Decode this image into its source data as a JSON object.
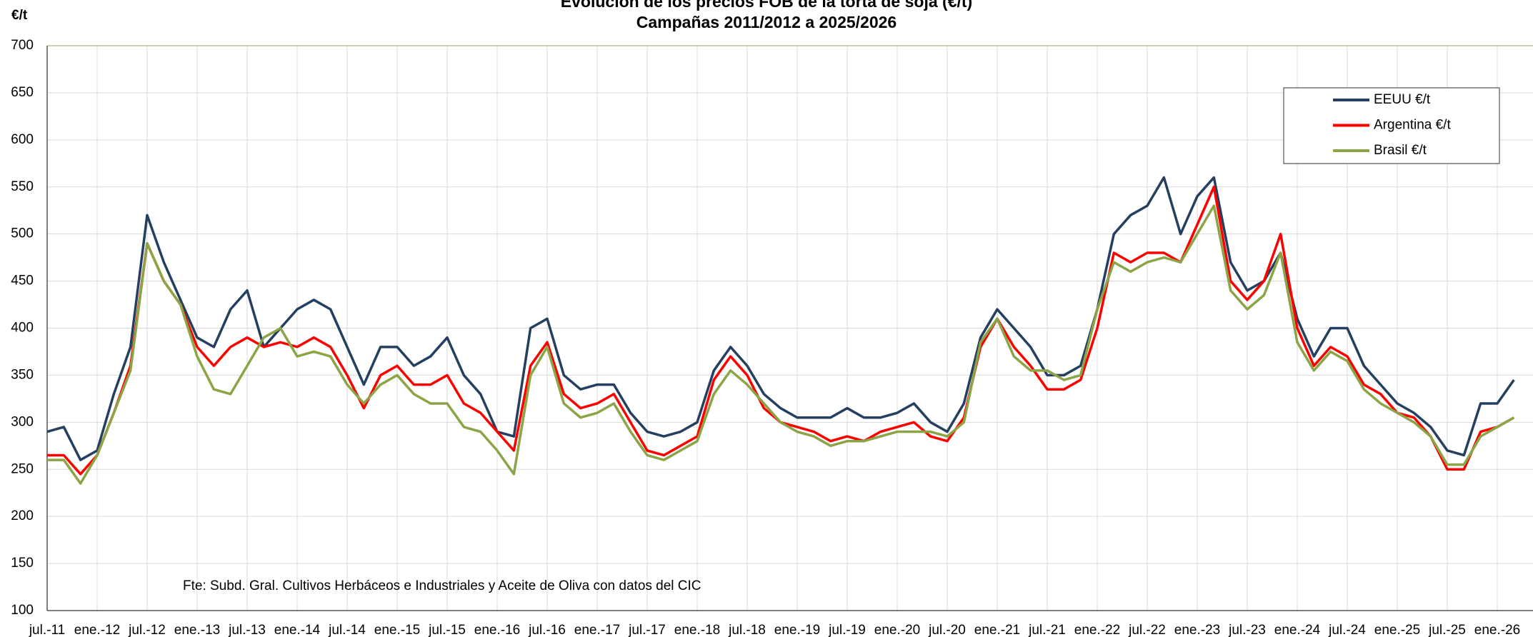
{
  "chart_data": {
    "type": "line",
    "title": "Evolución de los precios FOB de la torta de soja (€/t)",
    "subtitle": "Campañas 2011/2012 a 2025/2026",
    "y_label": "€/t",
    "annotation": "Fte: Subd. Gral. Cultivos Herbáceos e Industriales y Aceite de Oliva con datos del CIC",
    "categories": [
      "jul.-11",
      null,
      null,
      "ene.-12",
      null,
      null,
      "jul.-12",
      null,
      null,
      "ene.-13",
      null,
      null,
      "jul.-13",
      null,
      null,
      "ene.-14",
      null,
      null,
      "jul.-14",
      null,
      null,
      "ene.-15",
      null,
      null,
      "jul.-15",
      null,
      null,
      "ene.-16",
      null,
      null,
      "jul.-16",
      null,
      null,
      "ene.-17",
      null,
      null,
      "jul.-17",
      null,
      null,
      "ene.-18",
      null,
      null,
      "jul.-18",
      null,
      null,
      "ene.-19",
      null,
      null,
      "jul.-19",
      null,
      null,
      "ene.-20",
      null,
      null,
      "jul.-20",
      null,
      null,
      "ene.-21",
      null,
      null,
      "jul.-21",
      null,
      null,
      "ene.-22",
      null,
      null,
      "jul.-22",
      null,
      null,
      "ene.-23",
      null,
      null,
      "jul.-23",
      null,
      null,
      "ene.-24",
      null,
      null,
      "jul.-24",
      null,
      null,
      "ene.-25",
      null,
      null,
      "jul.-25",
      null,
      null,
      "ene.-26",
      null
    ],
    "series": [
      {
        "name": "EEUU €/t",
        "color": "#243f60",
        "values": [
          290,
          295,
          260,
          270,
          330,
          380,
          520,
          470,
          430,
          390,
          380,
          420,
          440,
          380,
          400,
          420,
          430,
          420,
          380,
          340,
          380,
          380,
          360,
          370,
          390,
          350,
          330,
          290,
          285,
          400,
          410,
          350,
          335,
          340,
          340,
          310,
          290,
          285,
          290,
          300,
          355,
          380,
          360,
          330,
          315,
          305,
          305,
          305,
          315,
          305,
          305,
          310,
          320,
          300,
          290,
          320,
          390,
          420,
          400,
          380,
          350,
          350,
          360,
          420,
          500,
          520,
          530,
          560,
          500,
          540,
          560,
          470,
          440,
          450,
          480,
          410,
          370,
          400,
          400,
          360,
          340,
          320,
          310,
          295,
          270,
          265,
          320,
          320,
          345
        ]
      },
      {
        "name": "Argentina €/t",
        "color": "#ff0000",
        "values": [
          265,
          265,
          245,
          265,
          310,
          360,
          490,
          450,
          425,
          380,
          360,
          380,
          390,
          380,
          385,
          380,
          390,
          380,
          350,
          315,
          350,
          360,
          340,
          340,
          350,
          320,
          310,
          290,
          270,
          360,
          385,
          330,
          315,
          320,
          330,
          300,
          270,
          265,
          275,
          285,
          345,
          370,
          350,
          315,
          300,
          295,
          290,
          280,
          285,
          280,
          290,
          295,
          300,
          285,
          280,
          305,
          380,
          410,
          380,
          360,
          335,
          335,
          345,
          400,
          480,
          470,
          480,
          480,
          470,
          510,
          550,
          450,
          430,
          450,
          500,
          400,
          360,
          380,
          370,
          340,
          330,
          310,
          305,
          285,
          250,
          250,
          290,
          295,
          305
        ]
      },
      {
        "name": "Brasil €/t",
        "color": "#8ba446",
        "values": [
          260,
          260,
          235,
          265,
          310,
          355,
          490,
          450,
          425,
          370,
          335,
          330,
          360,
          390,
          400,
          370,
          375,
          370,
          340,
          320,
          340,
          350,
          330,
          320,
          320,
          295,
          290,
          270,
          245,
          350,
          380,
          320,
          305,
          310,
          320,
          290,
          265,
          260,
          270,
          280,
          330,
          355,
          340,
          320,
          300,
          290,
          285,
          275,
          280,
          280,
          285,
          290,
          290,
          290,
          285,
          300,
          385,
          410,
          370,
          355,
          355,
          345,
          350,
          420,
          470,
          460,
          470,
          475,
          470,
          500,
          530,
          440,
          420,
          435,
          480,
          385,
          355,
          375,
          365,
          335,
          320,
          310,
          300,
          285,
          255,
          255,
          285,
          295,
          305
        ]
      }
    ],
    "ylim": [
      100,
      700
    ],
    "yticks": [
      100,
      150,
      200,
      250,
      300,
      350,
      400,
      450,
      500,
      550,
      600,
      650,
      700
    ],
    "grid": true,
    "legend": "upper right"
  }
}
